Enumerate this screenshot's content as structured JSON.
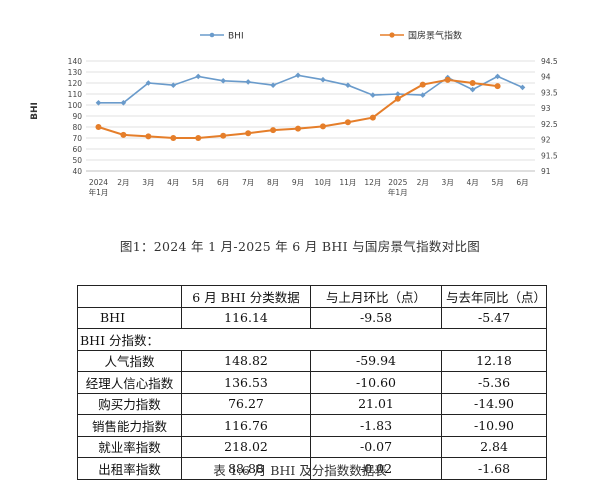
{
  "chart_data": {
    "type": "line",
    "categories": [
      "2024年1月",
      "2月",
      "3月",
      "4月",
      "5月",
      "6月",
      "7月",
      "8月",
      "9月",
      "10月",
      "11月",
      "12月",
      "2025年1月",
      "2月",
      "3月",
      "4月",
      "5月",
      "6月"
    ],
    "x_tick_lines": [
      [
        "2024",
        "年1月"
      ],
      [
        "2月"
      ],
      [
        "3月"
      ],
      [
        "4月"
      ],
      [
        "5月"
      ],
      [
        "6月"
      ],
      [
        "7月"
      ],
      [
        "8月"
      ],
      [
        "9月"
      ],
      [
        "10月"
      ],
      [
        "11月"
      ],
      [
        "12月"
      ],
      [
        "2025",
        "年1月"
      ],
      [
        "2月"
      ],
      [
        "3月"
      ],
      [
        "4月"
      ],
      [
        "5月"
      ],
      [
        "6月"
      ]
    ],
    "series": [
      {
        "name": "BHI",
        "axis": "left",
        "color": "#6a9bcb",
        "values": [
          102,
          102,
          120,
          118,
          126,
          122,
          121,
          118,
          127,
          123,
          118,
          109,
          110,
          109,
          125,
          114,
          126,
          116
        ]
      },
      {
        "name": "国房景气指数",
        "axis": "right",
        "color": "#e57e2a",
        "values": [
          92.4,
          92.15,
          92.1,
          92.05,
          92.05,
          92.12,
          92.2,
          92.3,
          92.35,
          92.42,
          92.55,
          92.7,
          93.3,
          93.75,
          93.9,
          93.8,
          93.7,
          null
        ]
      }
    ],
    "ylabel_left": "BHI",
    "ylim_left": [
      40,
      140
    ],
    "yticks_left": [
      "40",
      "50",
      "60",
      "70",
      "80",
      "90",
      "100",
      "110",
      "120",
      "130",
      "140"
    ],
    "ylim_right": [
      91,
      94.5
    ],
    "yticks_right": [
      "91",
      "91.5",
      "92",
      "92.5",
      "93",
      "93.5",
      "94",
      "94.5"
    ],
    "legend_position": "top",
    "caption": "图1：2024 年 1 月-2025 年 6 月 BHI 与国房景气指数对比图"
  },
  "table": {
    "headers": [
      "",
      "6 月 BHI 分类数据",
      "与上月环比（点）",
      "与去年同比（点）"
    ],
    "row_bhi": {
      "name": "BHI",
      "value": "116.14",
      "mom": "-9.58",
      "yoy": "-5.47"
    },
    "subheader": "BHI 分指数：",
    "rows": [
      {
        "name": "人气指数",
        "value": "148.82",
        "mom": "-59.94",
        "yoy": "12.18"
      },
      {
        "name": "经理人信心指数",
        "value": "136.53",
        "mom": "-10.60",
        "yoy": "-5.36"
      },
      {
        "name": "购买力指数",
        "value": "76.27",
        "mom": "21.01",
        "yoy": "-14.90"
      },
      {
        "name": "销售能力指数",
        "value": "116.76",
        "mom": "-1.83",
        "yoy": "-10.90"
      },
      {
        "name": "就业率指数",
        "value": "218.02",
        "mom": "-0.07",
        "yoy": "2.84"
      },
      {
        "name": "出租率指数",
        "value": "88.88",
        "mom": "-0.02",
        "yoy": "-1.68"
      }
    ],
    "caption": "表 1:6 月 BHI 及分指数数据表"
  }
}
